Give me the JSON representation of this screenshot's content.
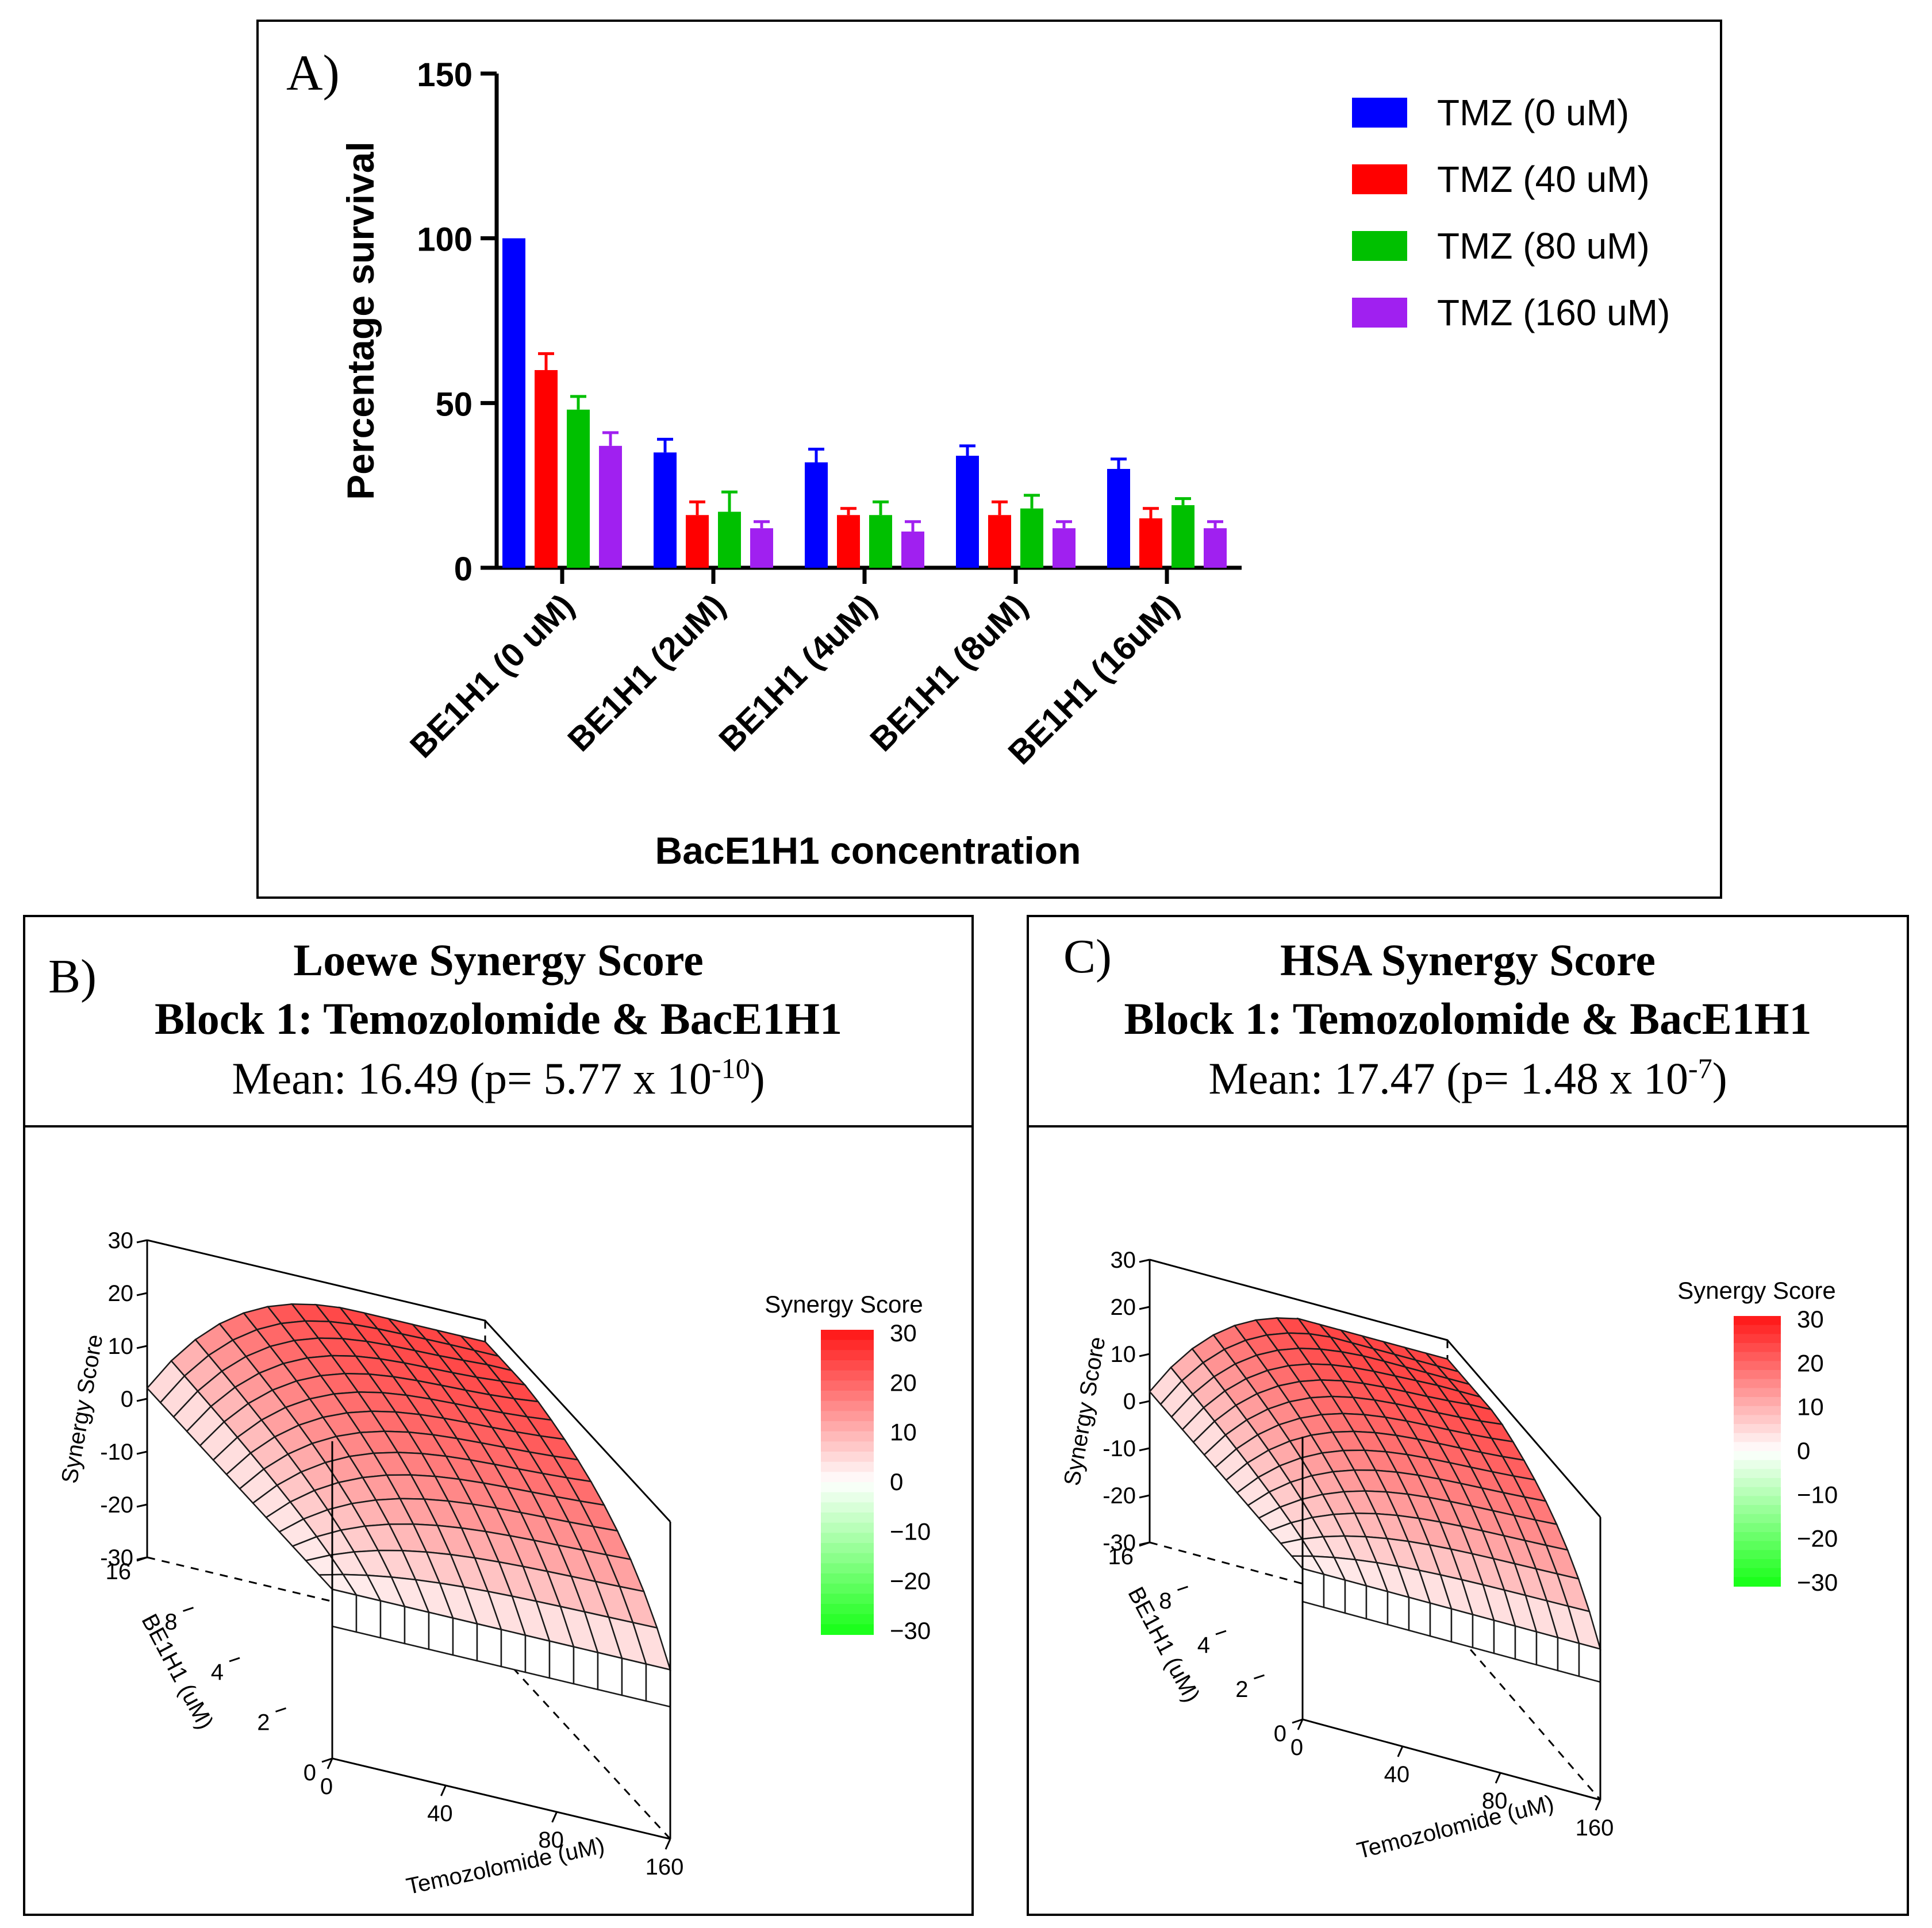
{
  "chart_data": [
    {
      "panel": "A)",
      "type": "bar",
      "title": "",
      "xlabel": "BacE1H1 concentration",
      "ylabel": "Percentage survival",
      "ylim": [
        0,
        150
      ],
      "yticks": [
        "0",
        "50",
        "100",
        "150"
      ],
      "categories": [
        "BE1H1 (0 uM)",
        "BE1H1 (2uM)",
        "BE1H1 (4uM)",
        "BE1H1 (8uM)",
        "BE1H1 (16uM)"
      ],
      "series": [
        {
          "name": "TMZ (0 uM)",
          "color": "#0000ff",
          "values": [
            100,
            35,
            32,
            34,
            30
          ],
          "errors": [
            0,
            4,
            4,
            3,
            3
          ]
        },
        {
          "name": "TMZ (40 uM)",
          "color": "#ff0000",
          "values": [
            60,
            16,
            16,
            16,
            15
          ],
          "errors": [
            5,
            4,
            2,
            4,
            3
          ]
        },
        {
          "name": "TMZ (80 uM)",
          "color": "#00c000",
          "values": [
            48,
            17,
            16,
            18,
            19
          ],
          "errors": [
            4,
            6,
            4,
            4,
            2
          ]
        },
        {
          "name": "TMZ (160 uM)",
          "color": "#a020f0",
          "values": [
            37,
            12,
            11,
            12,
            12
          ],
          "errors": [
            4,
            2,
            3,
            2,
            2
          ]
        }
      ],
      "legend_position": "top-right"
    },
    {
      "panel": "B)",
      "type": "surface",
      "title": "Loewe Synergy Score",
      "subtitle": "Block 1: Temozolomide & BacE1H1",
      "mean_text": "Mean: 16.49 (p= 5.77 x 10",
      "mean_exp": "-10",
      "mean_close": ")",
      "zlabel": "Synergy Score",
      "xlabel": "Temozolomide (uM)",
      "ylabel": "BE1H1 (uM)",
      "zticks": [
        "30",
        "20",
        "10",
        "0",
        "-10",
        "-20",
        "-30"
      ],
      "xticks": [
        "0",
        "40",
        "80",
        "160"
      ],
      "yticks": [
        "0",
        "2",
        "4",
        "8",
        "16"
      ],
      "legend_title": "Synergy Score",
      "legend_ticks": [
        "30",
        "20",
        "10",
        "0",
        "−10",
        "−20",
        "−30"
      ]
    },
    {
      "panel": "C)",
      "type": "surface",
      "title": "HSA Synergy Score",
      "subtitle": "Block 1: Temozolomide & BacE1H1",
      "mean_text": "Mean: 17.47 (p= 1.48 x 10",
      "mean_exp": "-7",
      "mean_close": ")",
      "zlabel": "Synergy Score",
      "xlabel": "Temozolomide (uM)",
      "ylabel": "BE1H1 (uM)",
      "zticks": [
        "30",
        "20",
        "10",
        "0",
        "-10",
        "-20",
        "-30"
      ],
      "xticks": [
        "0",
        "40",
        "80",
        "160"
      ],
      "yticks": [
        "0",
        "2",
        "4",
        "8",
        "16"
      ],
      "legend_title": "Synergy Score",
      "legend_ticks": [
        "30",
        "20",
        "10",
        "0",
        "−10",
        "−20",
        "−30"
      ]
    }
  ]
}
